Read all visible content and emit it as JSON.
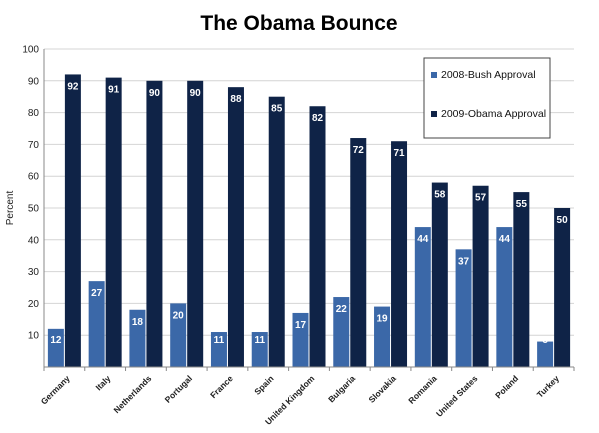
{
  "chart_data": {
    "type": "bar",
    "title": "The Obama Bounce",
    "xlabel": "",
    "ylabel": "Percent",
    "ylim": [
      0,
      100
    ],
    "yticks": [
      10,
      20,
      30,
      40,
      50,
      60,
      70,
      80,
      90,
      100
    ],
    "grid": true,
    "legend_position": "top-right",
    "categories": [
      "Germany",
      "Italy",
      "Netherlands",
      "Portugal",
      "France",
      "Spain",
      "United Kingdom",
      "Bulgaria",
      "Slovakia",
      "Romania",
      "United States",
      "Poland",
      "Turkey"
    ],
    "series": [
      {
        "name": "2008-Bush Approval",
        "color": "#3b68a8",
        "values": [
          12,
          27,
          18,
          20,
          11,
          11,
          17,
          22,
          19,
          44,
          37,
          44,
          8
        ]
      },
      {
        "name": "2009-Obama Approval",
        "color": "#0f2347",
        "values": [
          92,
          91,
          90,
          90,
          88,
          85,
          82,
          72,
          71,
          58,
          57,
          55,
          50
        ]
      }
    ]
  }
}
